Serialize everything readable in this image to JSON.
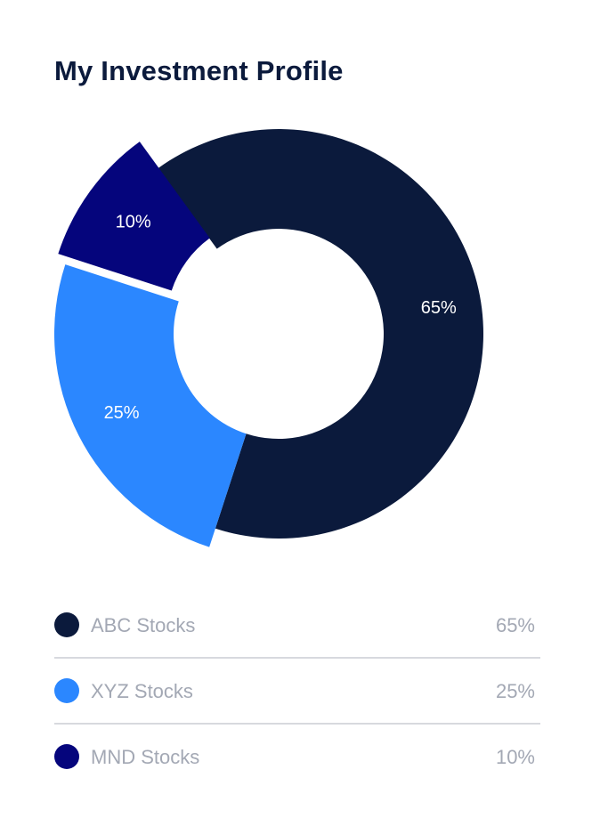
{
  "header": {
    "title": "My Investment Profile"
  },
  "chart_data": {
    "type": "pie",
    "variant": "donut",
    "title": "My Investment Profile",
    "slices": [
      {
        "label": "ABC Stocks",
        "value": 65,
        "display": "65%",
        "color": "#0b1a3c"
      },
      {
        "label": "XYZ Stocks",
        "value": 25,
        "display": "25%",
        "color": "#2b87ff"
      },
      {
        "label": "MND Stocks",
        "value": 10,
        "display": "10%",
        "color": "#05057c"
      }
    ],
    "legend_position": "bottom"
  },
  "legend": {
    "items": [
      {
        "label": "ABC Stocks",
        "value": "65%",
        "color": "#0b1a3c"
      },
      {
        "label": "XYZ Stocks",
        "value": "25%",
        "color": "#2b87ff"
      },
      {
        "label": "MND Stocks",
        "value": "10%",
        "color": "#05057c"
      }
    ]
  }
}
